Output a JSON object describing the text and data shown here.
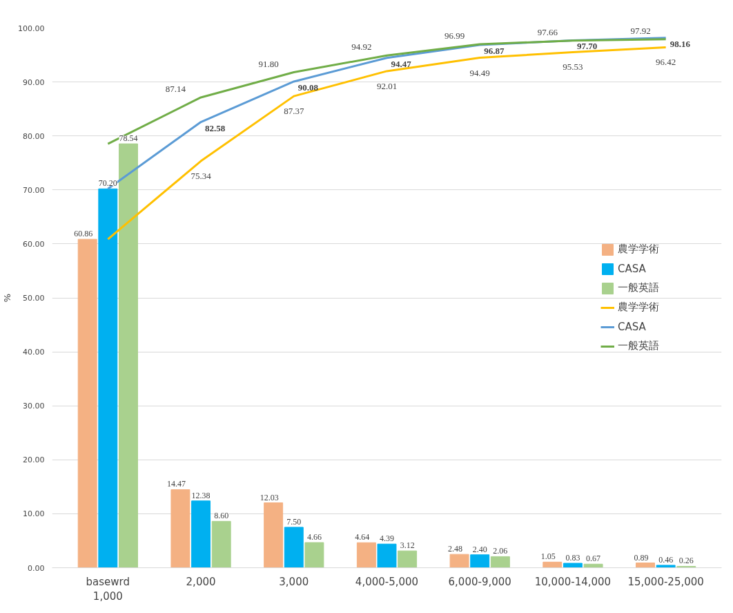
{
  "chart_data": {
    "type": "bar",
    "ylabel": "%",
    "categories": [
      "basewrd\n1,000",
      "2,000",
      "3,000",
      "4,000-5,000",
      "6,000-9,000",
      "10,000-14,000",
      "15,000-25,000"
    ],
    "series": [
      {
        "name": "農学学術",
        "color": "#f4b183",
        "values": [
          60.86,
          14.47,
          12.03,
          4.64,
          2.48,
          1.05,
          0.89
        ],
        "value_labels": [
          "60.86",
          "14.47",
          "12.03",
          "4.64",
          "2.48",
          "1.05",
          "0.89"
        ]
      },
      {
        "name": "CASA",
        "color": "#00b0f0",
        "values": [
          70.2,
          12.38,
          7.5,
          4.39,
          2.4,
          0.83,
          0.46
        ],
        "value_labels": [
          "70.20",
          "12.38",
          "7.50",
          "4.39",
          "2.40",
          "0.83",
          "0.46"
        ]
      },
      {
        "name": "一般英語",
        "color": "#a9d18e",
        "values": [
          78.54,
          8.6,
          4.66,
          3.12,
          2.06,
          0.67,
          0.26
        ],
        "value_labels": [
          "78.54",
          "8.60",
          "4.66",
          "3.12",
          "2.06",
          "0.67",
          "0.26"
        ]
      },
      {
        "name": "農学学術",
        "type": "line",
        "color": "#ffc000",
        "values": [
          60.86,
          75.34,
          87.37,
          92.01,
          94.49,
          95.53,
          96.42
        ],
        "value_labels": [
          null,
          "75.34",
          "87.37",
          "92.01",
          "94.49",
          "95.53",
          "96.42"
        ]
      },
      {
        "name": "CASA",
        "type": "line",
        "color": "#5b9bd5",
        "values": [
          70.2,
          82.58,
          90.08,
          94.47,
          96.87,
          97.7,
          98.16
        ],
        "value_labels": [
          null,
          "82.58",
          "90.08",
          "94.47",
          "96.87",
          "97.70",
          "98.16"
        ]
      },
      {
        "name": "一般英語",
        "type": "line",
        "color": "#70ad47",
        "values": [
          78.54,
          87.14,
          91.8,
          94.92,
          96.99,
          97.66,
          97.92
        ],
        "value_labels": [
          null,
          "87.14",
          "91.80",
          "94.92",
          "96.99",
          "97.66",
          "97.92"
        ]
      }
    ],
    "ylim": [
      0,
      100
    ],
    "yticks": [
      {
        "value": 0,
        "label": "0.00"
      },
      {
        "value": 10,
        "label": "10.00"
      },
      {
        "value": 20,
        "label": "20.00"
      },
      {
        "value": 30,
        "label": "30.00"
      },
      {
        "value": 40,
        "label": "40.00"
      },
      {
        "value": 50,
        "label": "50.00"
      },
      {
        "value": 60,
        "label": "60.00"
      },
      {
        "value": 70,
        "label": "70.00"
      },
      {
        "value": 80,
        "label": "80.00"
      },
      {
        "value": 90,
        "label": "90.00"
      },
      {
        "value": 100,
        "label": "100.00"
      }
    ],
    "grid": "y",
    "legend": "right",
    "marker": "none",
    "line_style": "solid"
  }
}
